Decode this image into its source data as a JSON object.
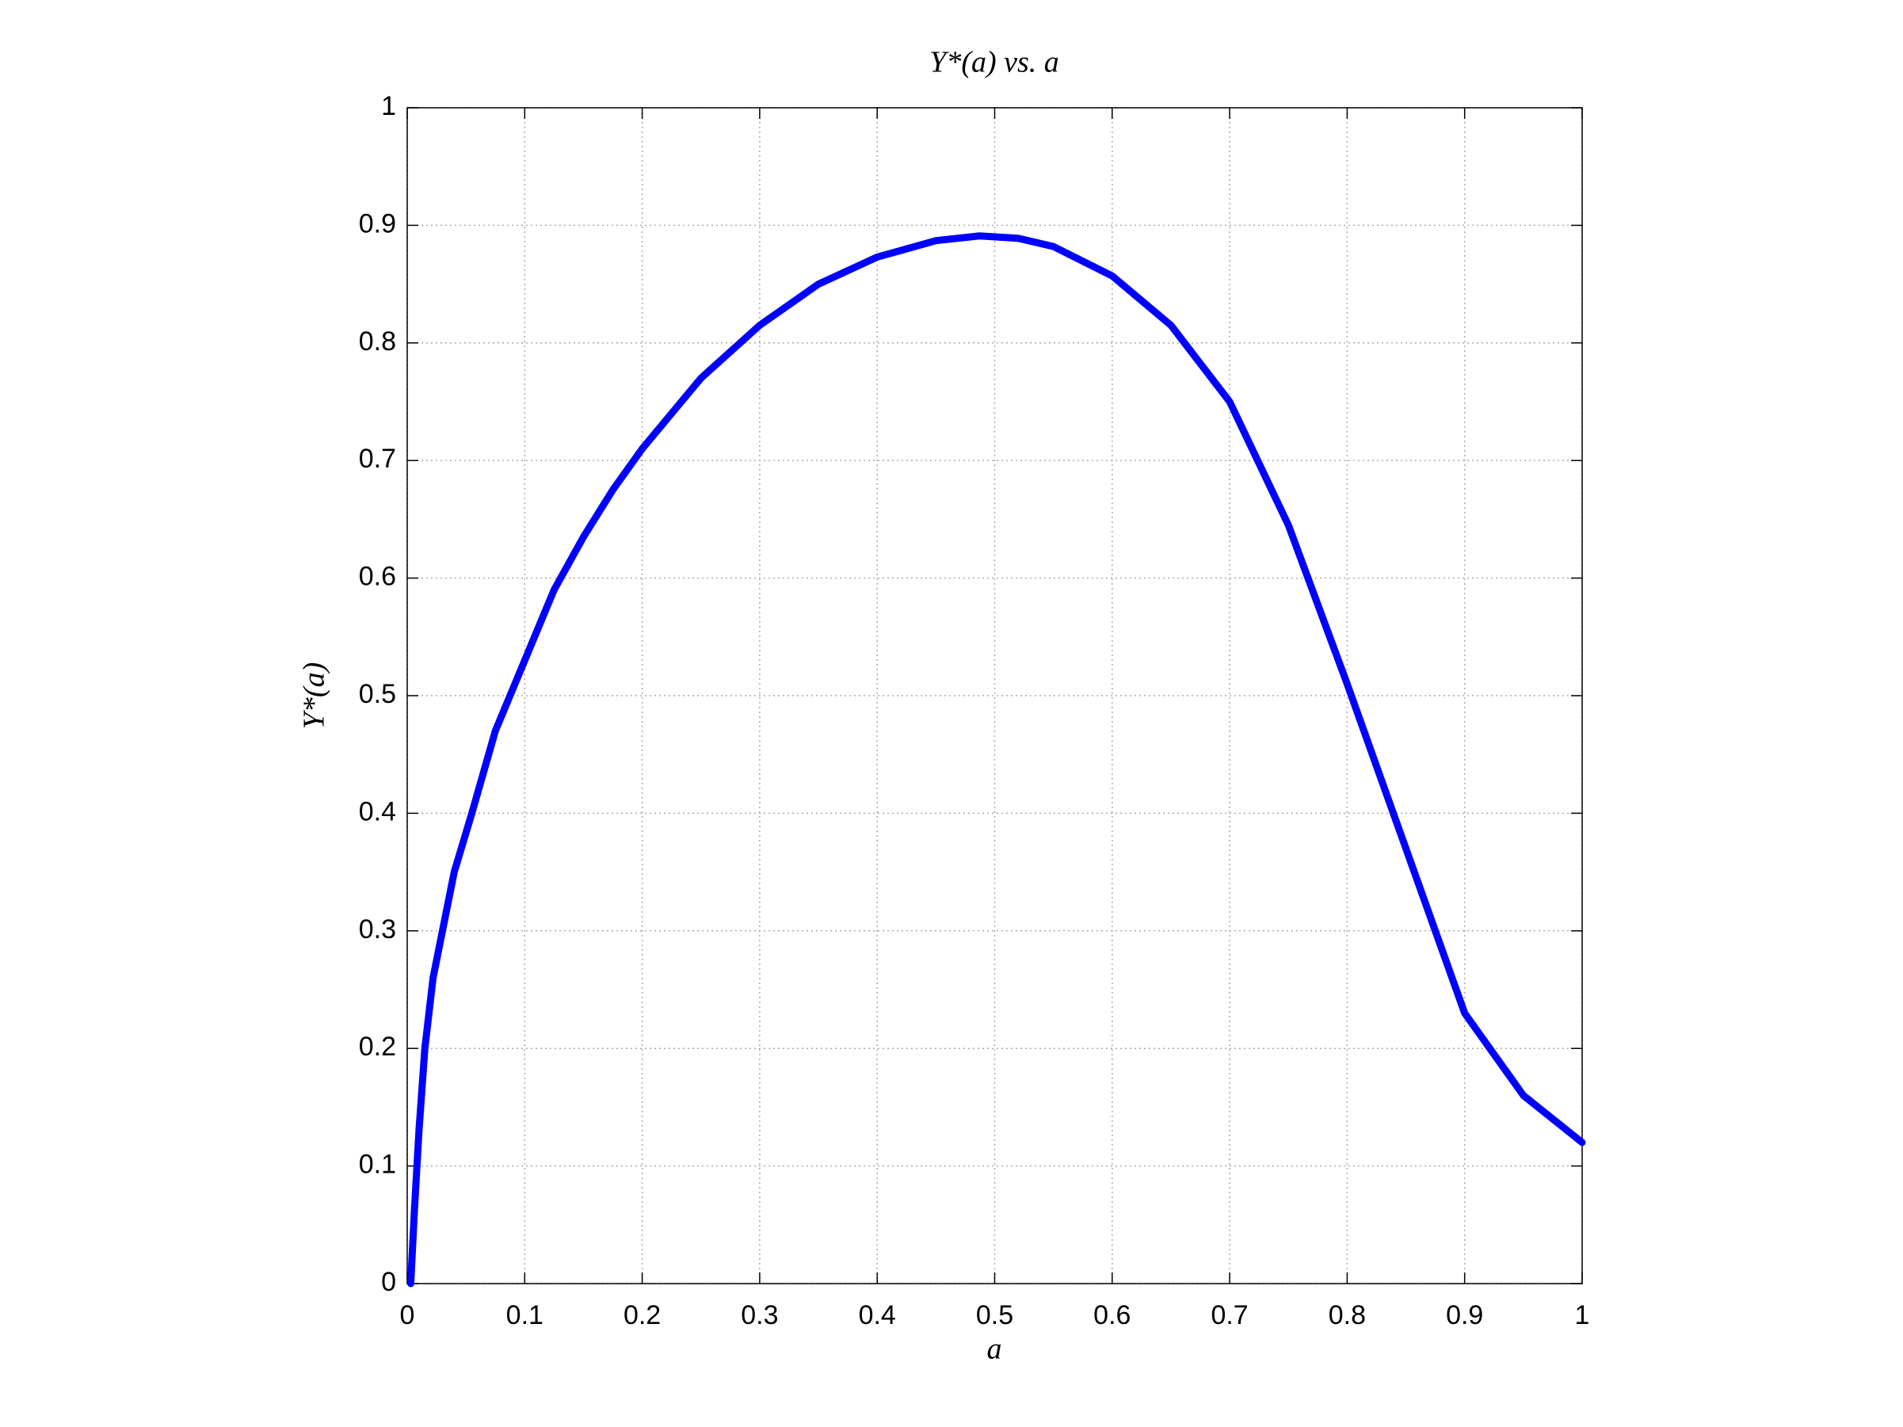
{
  "chart_data": {
    "type": "line",
    "title": "Y*(a) vs. a",
    "xlabel": "a",
    "ylabel": "Y*(a)",
    "x": [
      0.003,
      0.006,
      0.01,
      0.015,
      0.022,
      0.03,
      0.04,
      0.055,
      0.075,
      0.1,
      0.125,
      0.15,
      0.175,
      0.2,
      0.25,
      0.3,
      0.35,
      0.4,
      0.45,
      0.487,
      0.52,
      0.55,
      0.6,
      0.65,
      0.7,
      0.75,
      0.8,
      0.85,
      0.9,
      0.95,
      1.0
    ],
    "series": [
      {
        "name": "Y*(a)",
        "color": "#0000ff",
        "values": [
          0,
          0.06,
          0.13,
          0.2,
          0.26,
          0.3,
          0.35,
          0.4,
          0.47,
          0.53,
          0.59,
          0.635,
          0.675,
          0.71,
          0.77,
          0.815,
          0.85,
          0.873,
          0.887,
          0.891,
          0.889,
          0.882,
          0.857,
          0.815,
          0.75,
          0.645,
          0.51,
          0.37,
          0.23,
          0.16,
          0.12
        ]
      }
    ],
    "xlim": [
      0,
      1
    ],
    "ylim": [
      0,
      1
    ],
    "xticks": [
      0,
      0.1,
      0.2,
      0.3,
      0.4,
      0.5,
      0.6,
      0.7,
      0.8,
      0.9,
      1
    ],
    "yticks": [
      0,
      0.1,
      0.2,
      0.3,
      0.4,
      0.5,
      0.6,
      0.7,
      0.8,
      0.9,
      1
    ],
    "grid": true
  }
}
